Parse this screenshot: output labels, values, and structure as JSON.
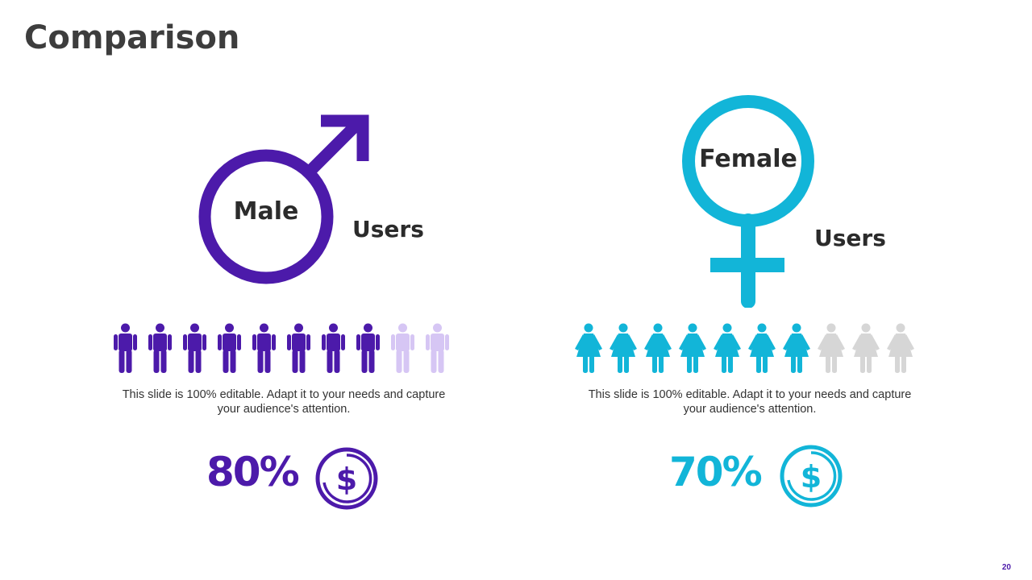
{
  "slide": {
    "title": "Comparison",
    "page_number": "20"
  },
  "colors": {
    "male": "#4c1aaa",
    "male_light": "#d6c6f4",
    "female": "#12b5d8",
    "female_light": "#d6d6d6"
  },
  "male": {
    "symbol_label": "Male",
    "users_label": "Users",
    "people_total": 10,
    "people_filled": 8,
    "description": "This slide is 100% editable. Adapt it to your needs and capture your audience's attention.",
    "percent": "80%",
    "coin_icon": "dollar-coin-icon",
    "symbol_icon": "male-symbol-icon",
    "person_icon": "male-person-icon"
  },
  "female": {
    "symbol_label": "Female",
    "users_label": "Users",
    "people_total": 10,
    "people_filled": 7,
    "description": "This slide is 100% editable. Adapt it to your needs and capture your audience's attention.",
    "percent": "70%",
    "coin_icon": "dollar-coin-icon",
    "symbol_icon": "female-symbol-icon",
    "person_icon": "female-person-icon"
  }
}
